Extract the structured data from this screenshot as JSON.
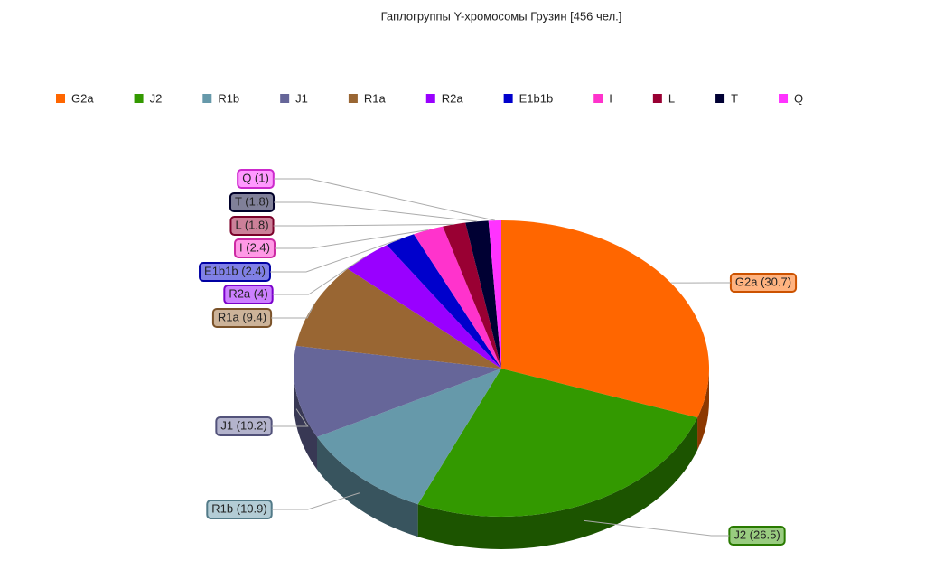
{
  "chart_data": {
    "type": "pie",
    "title": "Гаплогруппы Y-хромосомы Грузин [456 чел.]",
    "categories": [
      "G2a",
      "J2",
      "R1b",
      "J1",
      "R1a",
      "R2a",
      "E1b1b",
      "I",
      "L",
      "T",
      "Q"
    ],
    "series": [
      {
        "values": [
          30.7,
          26.5,
          10.9,
          10.2,
          9.4,
          4,
          2.4,
          2.4,
          1.8,
          1.8,
          1
        ],
        "value_labels": [
          "G2a (30.7)",
          "J2 (26.5)",
          "R1b (10.9)",
          "J1 (10.2)",
          "R1a (9.4)",
          "R2a (4)",
          "E1b1b (2.4)",
          "I (2.4)",
          "L (1.8)",
          "T (1.8)",
          "Q (1)"
        ],
        "colors": [
          "#ff6600",
          "#339900",
          "#6699aa",
          "#666699",
          "#996633",
          "#9900ff",
          "#0000cc",
          "#ff33cc",
          "#990033",
          "#000033",
          "#ff33ff"
        ]
      }
    ],
    "legend": "top"
  }
}
